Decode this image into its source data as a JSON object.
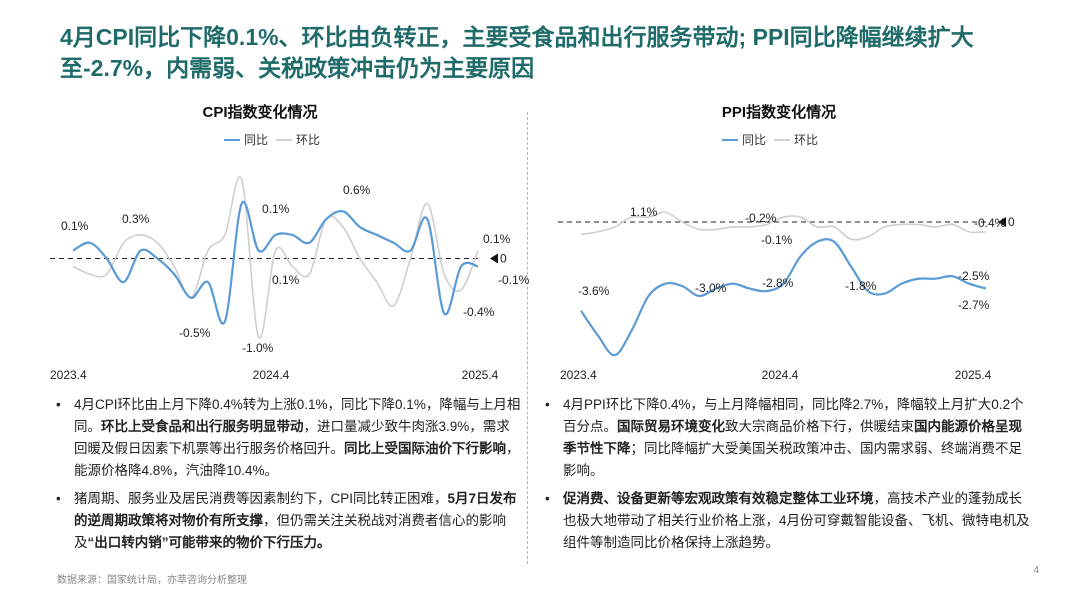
{
  "page": {
    "title": "4月CPI同比下降0.1%、环比由负转正，主要受食品和出行服务带动; PPI同比降幅继续扩大至-2.7%，内需弱、关税政策冲击仍为主要原因",
    "source": "数据来源：国家统计局，亦萃咨询分析整理",
    "page_number": "4"
  },
  "colors": {
    "title": "#1f6b69",
    "yoy": "#5b9bd5",
    "mom": "#cfcfcf"
  },
  "left": {
    "chart_title": "CPI指数变化情况",
    "legend_yoy": "同比",
    "legend_mom": "环比",
    "bullets": [
      [
        {
          "t": "4月CPI环比由上月下降0.4%转为上涨0.1%，同比下降0.1%，降幅与上月相同。",
          "b": false
        },
        {
          "t": "环比上受食品和出行服务明显带动",
          "b": true
        },
        {
          "t": "，进口量减少致牛肉涨3.9%，需求回暖及假日因素下机票等出行服务价格回升。",
          "b": false
        },
        {
          "t": "同比上受国际油价下行影响",
          "b": true
        },
        {
          "t": "，能源价格降4.8%，汽油降10.4%。",
          "b": false
        }
      ],
      [
        {
          "t": "猪周期、服务业及居民消费等因素制约下，CPI同比转正困难，",
          "b": false
        },
        {
          "t": "5月7日发布的逆周期政策将对物价有所支撑",
          "b": true
        },
        {
          "t": "，但仍需关注关税战对消费者信心的影响及",
          "b": false
        },
        {
          "t": "“出口转内销”可能带来的物价下行压力。",
          "b": true
        }
      ]
    ]
  },
  "right": {
    "chart_title": "PPI指数变化情况",
    "legend_yoy": "同比",
    "legend_mom": "环比",
    "bullets": [
      [
        {
          "t": "4月PPI环比下降0.4%，与上月降幅相同，同比降2.7%，降幅较上月扩大0.2个百分点。",
          "b": false
        },
        {
          "t": "国际贸易环境变化",
          "b": true
        },
        {
          "t": "致大宗商品价格下行，供暖结束",
          "b": false
        },
        {
          "t": "国内能源价格呈现季节性下降",
          "b": true
        },
        {
          "t": "；同比降幅扩大受美国关税政策冲击、国内需求弱、终端消费不足影响。",
          "b": false
        }
      ],
      [
        {
          "t": "促消费、设备更新等宏观政策有效稳定整体工业环境",
          "b": true
        },
        {
          "t": "，高技术产业的蓬勃成长也极大地带动了相关行业价格上涨，4月份可穿戴智能设备、飞机、微特电机及组件等制造同比价格保持上涨趋势。",
          "b": false
        }
      ]
    ]
  },
  "chart_data": [
    {
      "type": "line",
      "title": "CPI指数变化情况",
      "x": [
        "2023.4",
        "2023.5",
        "2023.6",
        "2023.7",
        "2023.8",
        "2023.9",
        "2023.10",
        "2023.11",
        "2023.12",
        "2024.1",
        "2024.2",
        "2024.3",
        "2024.4",
        "2024.5",
        "2024.6",
        "2024.7",
        "2024.8",
        "2024.9",
        "2024.10",
        "2024.11",
        "2024.12",
        "2025.1",
        "2025.2",
        "2025.3",
        "2025.4"
      ],
      "x_tick_labels": [
        "2023.4",
        "2024.4",
        "2025.4"
      ],
      "series": [
        {
          "name": "同比",
          "values": [
            0.1,
            0.2,
            0.0,
            -0.3,
            0.1,
            0.0,
            -0.2,
            -0.5,
            -0.3,
            -0.8,
            0.7,
            0.1,
            0.3,
            0.3,
            0.2,
            0.5,
            0.6,
            0.4,
            0.3,
            0.2,
            0.1,
            0.5,
            -0.7,
            -0.1,
            -0.1
          ]
        },
        {
          "name": "环比",
          "values": [
            -0.1,
            -0.2,
            -0.2,
            0.2,
            0.3,
            0.2,
            -0.1,
            -0.5,
            0.1,
            0.3,
            1.0,
            -1.0,
            0.1,
            -0.1,
            -0.2,
            0.5,
            0.4,
            0.0,
            -0.3,
            -0.6,
            0.0,
            0.7,
            -0.2,
            -0.4,
            0.1
          ]
        }
      ],
      "reference_line": 0,
      "reference_label": "0",
      "annotations": [
        "0.1%",
        "0.3%",
        "-0.5%",
        "-1.0%",
        "0.1%",
        "0.1%",
        "0.6%",
        "0.1%",
        "-0.1%",
        "-0.4%"
      ],
      "ylim": [
        -1.1,
        1.1
      ]
    },
    {
      "type": "line",
      "title": "PPI指数变化情况",
      "x": [
        "2023.4",
        "2023.5",
        "2023.6",
        "2023.7",
        "2023.8",
        "2023.9",
        "2023.10",
        "2023.11",
        "2023.12",
        "2024.1",
        "2024.2",
        "2024.3",
        "2024.4",
        "2024.5",
        "2024.6",
        "2024.7",
        "2024.8",
        "2024.9",
        "2024.10",
        "2024.11",
        "2024.12",
        "2025.1",
        "2025.2",
        "2025.3",
        "2025.4"
      ],
      "x_tick_labels": [
        "2023.4",
        "2024.4",
        "2025.4"
      ],
      "series": [
        {
          "name": "同比",
          "values": [
            -3.6,
            -4.6,
            -5.4,
            -4.4,
            -3.0,
            -2.5,
            -2.6,
            -3.0,
            -2.7,
            -2.5,
            -2.7,
            -2.8,
            -2.5,
            -1.4,
            -0.8,
            -0.8,
            -1.8,
            -2.8,
            -2.9,
            -2.5,
            -2.3,
            -2.3,
            -2.2,
            -2.5,
            -2.7
          ]
        },
        {
          "name": "环比",
          "values": [
            -0.5,
            -0.4,
            -0.2,
            0.2,
            0.2,
            0.4,
            0.0,
            -0.3,
            -0.3,
            -0.2,
            -0.2,
            -0.1,
            0.2,
            0.2,
            -0.2,
            -0.2,
            -0.7,
            -0.6,
            -0.2,
            -0.1,
            -0.1,
            -0.2,
            -0.1,
            -0.4,
            -0.4
          ]
        }
      ],
      "reference_line": 0,
      "reference_label": "0",
      "annotations": [
        "1.1%",
        "-0.2%",
        "-0.1%",
        "-0.4%",
        "-3.6%",
        "-3.0%",
        "-2.8%",
        "-1.8%",
        "-2.5%",
        "-2.7%"
      ],
      "ylim": [
        -6.0,
        1.5
      ]
    }
  ]
}
